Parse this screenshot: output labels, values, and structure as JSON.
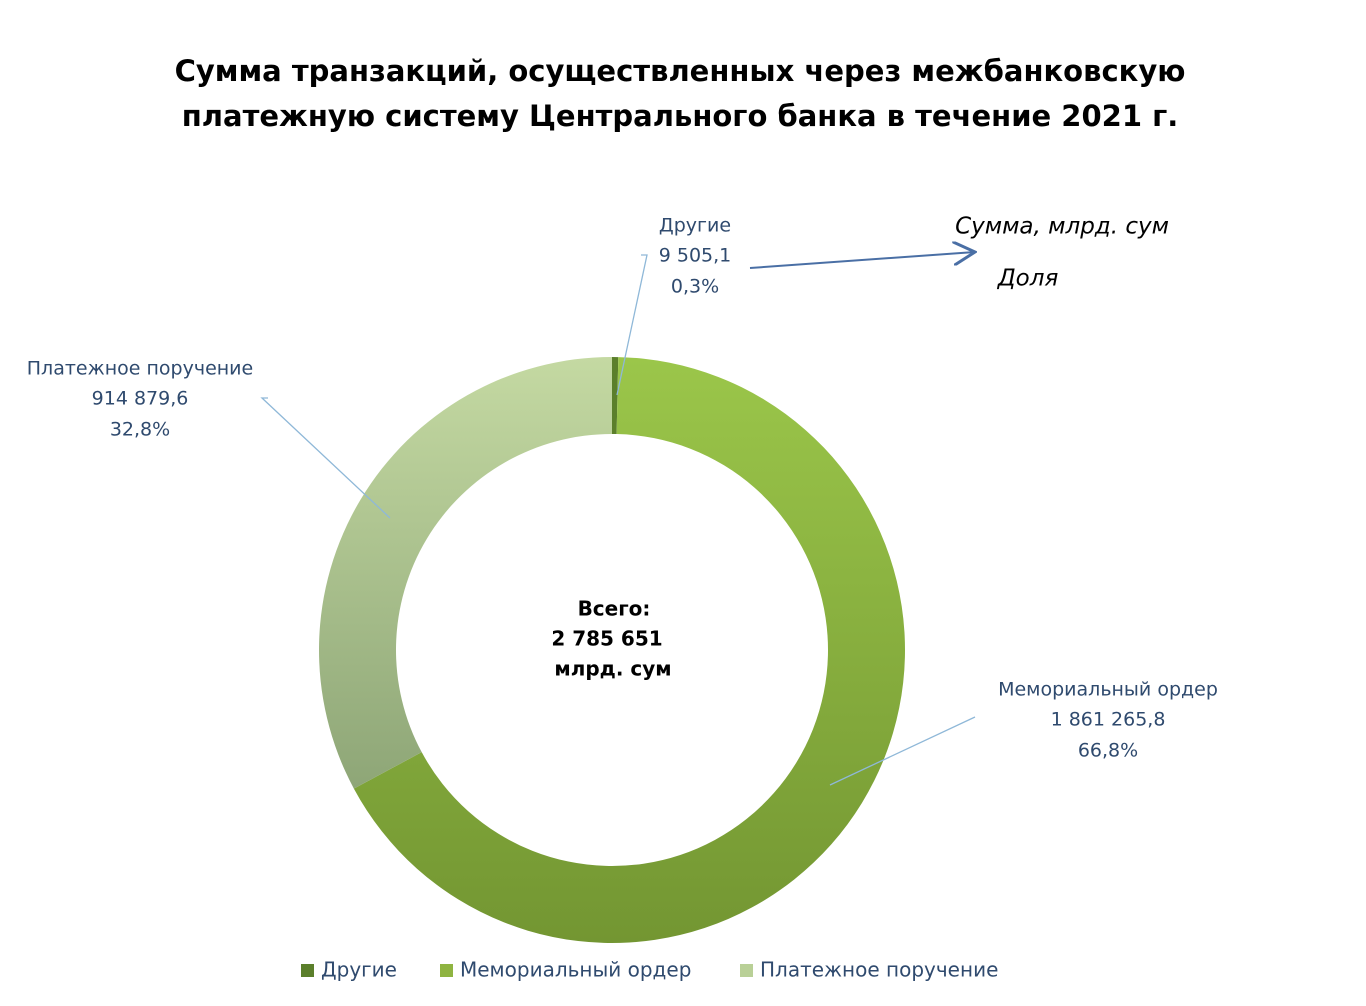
{
  "chart_data": {
    "type": "donut",
    "title": "Сумма транзакций, осуществленных через межбанковскую платежную систему Центрального банка в течение 2021 г.",
    "categories": [
      "Другие",
      "Мемориальный ордер",
      "Платежное поручение"
    ],
    "values": [
      9505.1,
      1861265.8,
      914879.6
    ],
    "value_labels": [
      "9 505,1",
      "1 861 265,8",
      "914 879,6"
    ],
    "shares": [
      0.3,
      66.8,
      32.8
    ],
    "share_labels": [
      "0,3%",
      "66,8%",
      "32,8%"
    ],
    "colors": [
      "#5b7f2b",
      "#8fb441",
      "#b9d097"
    ],
    "center": {
      "title": "Всего:",
      "total": {
        "value": 2785651,
        "label": "2 785 651"
      },
      "unit": "млрд. сум"
    },
    "annotations": [
      "Сумма, млрд. сум",
      "Доля"
    ],
    "legend": "bottom"
  }
}
